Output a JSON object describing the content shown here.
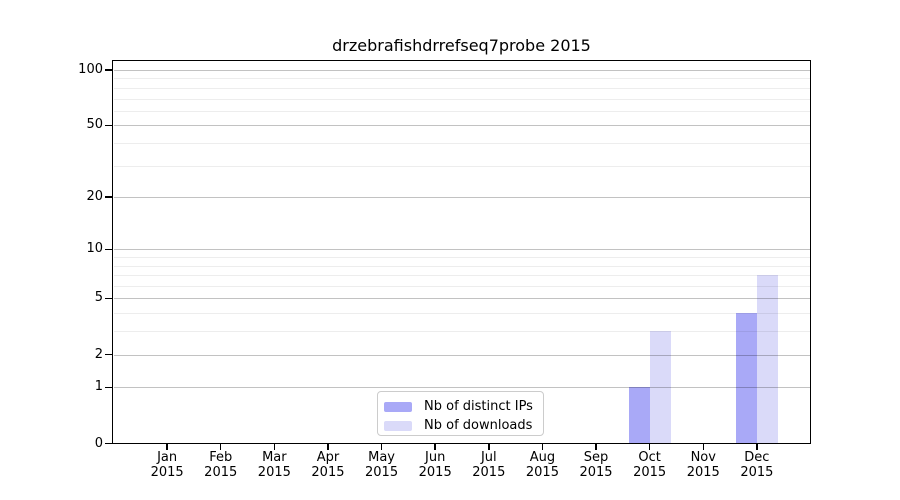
{
  "title": "drzebrafishdrrefseq7probe 2015",
  "chart_data": {
    "type": "bar",
    "title": "drzebrafishdrrefseq7probe 2015",
    "categories": [
      "Jan 2015",
      "Feb 2015",
      "Mar 2015",
      "Apr 2015",
      "May 2015",
      "Jun 2015",
      "Jul 2015",
      "Aug 2015",
      "Sep 2015",
      "Oct 2015",
      "Nov 2015",
      "Dec 2015"
    ],
    "series": [
      {
        "name": "Nb of distinct IPs",
        "color": "#a9a9f7",
        "values": [
          0,
          0,
          0,
          0,
          0,
          0,
          0,
          0,
          0,
          1,
          0,
          4
        ]
      },
      {
        "name": "Nb of downloads",
        "color": "#dadaf9",
        "values": [
          0,
          0,
          0,
          0,
          0,
          0,
          0,
          0,
          0,
          3,
          0,
          7
        ]
      }
    ],
    "xlabel": "",
    "ylabel": "",
    "yscale": "log1p",
    "ylim": [
      0,
      112
    ],
    "y_major_ticks": [
      0,
      1,
      2,
      5,
      10,
      20,
      50,
      100
    ],
    "y_minor_gridlines": [
      3,
      4,
      6,
      7,
      8,
      9,
      30,
      40,
      60,
      70,
      80,
      90
    ],
    "grid": true,
    "grid_over_bars": true,
    "legend_position": "lower center"
  },
  "colors": {
    "background": "#ffffff",
    "spine": "#000000",
    "bar_distinct_ips": "#a9a9f7",
    "bar_downloads": "#dadaf9",
    "major_grid": "#bfbfbf",
    "minor_grid": "#ececec"
  }
}
